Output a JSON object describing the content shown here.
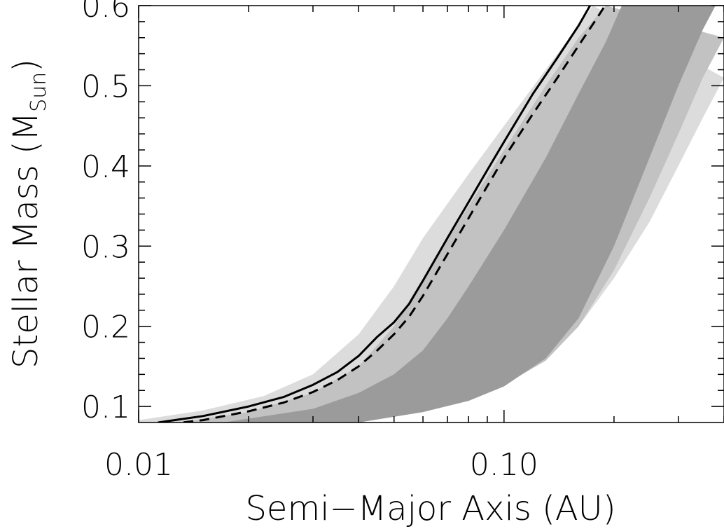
{
  "chart_data": {
    "type": "area",
    "title": "",
    "xlabel": "Semi−Major Axis (AU)",
    "ylabel_main": "Stellar Mass (M",
    "ylabel_sub": "Sun",
    "ylabel_close": ")",
    "x_scale": "log",
    "xlim": [
      0.01,
      0.4
    ],
    "ylim": [
      0.08,
      0.6
    ],
    "x_ticks": [
      {
        "value": 0.01,
        "label": "0.01"
      },
      {
        "value": 0.1,
        "label": "0.10"
      }
    ],
    "y_ticks": [
      {
        "value": 0.1,
        "label": "0.1"
      },
      {
        "value": 0.2,
        "label": "0.2"
      },
      {
        "value": 0.3,
        "label": "0.3"
      },
      {
        "value": 0.4,
        "label": "0.4"
      },
      {
        "value": 0.5,
        "label": "0.5"
      },
      {
        "value": 0.6,
        "label": "0.6"
      }
    ],
    "colors": {
      "outer_band": "#dcdcdc",
      "middle_band": "#c2c2c2",
      "inner_band": "#9b9b9b",
      "line": "#000000"
    },
    "bands": [
      {
        "level": "outer",
        "inner_edge": [
          [
            0.0095,
            0.08
          ],
          [
            0.01,
            0.083
          ],
          [
            0.015,
            0.095
          ],
          [
            0.022,
            0.113
          ],
          [
            0.03,
            0.14
          ],
          [
            0.04,
            0.19
          ],
          [
            0.05,
            0.25
          ],
          [
            0.06,
            0.31
          ],
          [
            0.08,
            0.39
          ],
          [
            0.1,
            0.45
          ],
          [
            0.13,
            0.52
          ],
          [
            0.16,
            0.575
          ],
          [
            0.175,
            0.6
          ]
        ],
        "outer_edge": [
          [
            0.021,
            0.08
          ],
          [
            0.04,
            0.088
          ],
          [
            0.06,
            0.1
          ],
          [
            0.08,
            0.113
          ],
          [
            0.1,
            0.13
          ],
          [
            0.13,
            0.16
          ],
          [
            0.16,
            0.2
          ],
          [
            0.2,
            0.26
          ],
          [
            0.25,
            0.33
          ],
          [
            0.3,
            0.4
          ],
          [
            0.35,
            0.46
          ],
          [
            0.4,
            0.51
          ]
        ]
      },
      {
        "level": "middle",
        "inner_edge": [
          [
            0.013,
            0.08
          ],
          [
            0.02,
            0.093
          ],
          [
            0.03,
            0.117
          ],
          [
            0.04,
            0.15
          ],
          [
            0.05,
            0.2
          ],
          [
            0.06,
            0.26
          ],
          [
            0.08,
            0.35
          ],
          [
            0.1,
            0.42
          ],
          [
            0.13,
            0.5
          ],
          [
            0.16,
            0.56
          ],
          [
            0.19,
            0.6
          ]
        ],
        "outer_edge": [
          [
            0.03,
            0.08
          ],
          [
            0.05,
            0.09
          ],
          [
            0.07,
            0.103
          ],
          [
            0.1,
            0.127
          ],
          [
            0.13,
            0.157
          ],
          [
            0.16,
            0.2
          ],
          [
            0.2,
            0.27
          ],
          [
            0.25,
            0.36
          ],
          [
            0.3,
            0.44
          ],
          [
            0.35,
            0.51
          ],
          [
            0.4,
            0.56
          ]
        ]
      },
      {
        "level": "inner",
        "inner_edge": [
          [
            0.017,
            0.08
          ],
          [
            0.03,
            0.097
          ],
          [
            0.04,
            0.117
          ],
          [
            0.05,
            0.14
          ],
          [
            0.06,
            0.17
          ],
          [
            0.07,
            0.21
          ],
          [
            0.08,
            0.25
          ],
          [
            0.1,
            0.32
          ],
          [
            0.13,
            0.41
          ],
          [
            0.16,
            0.49
          ],
          [
            0.19,
            0.555
          ],
          [
            0.21,
            0.6
          ]
        ],
        "outer_edge": [
          [
            0.04,
            0.08
          ],
          [
            0.06,
            0.093
          ],
          [
            0.08,
            0.107
          ],
          [
            0.1,
            0.125
          ],
          [
            0.13,
            0.16
          ],
          [
            0.16,
            0.21
          ],
          [
            0.2,
            0.3
          ],
          [
            0.25,
            0.41
          ],
          [
            0.3,
            0.5
          ],
          [
            0.35,
            0.57
          ],
          [
            0.4,
            0.62
          ]
        ]
      }
    ],
    "series": [
      {
        "style": "solid",
        "points": [
          [
            0.0113,
            0.08
          ],
          [
            0.015,
            0.088
          ],
          [
            0.02,
            0.1
          ],
          [
            0.025,
            0.112
          ],
          [
            0.03,
            0.127
          ],
          [
            0.035,
            0.143
          ],
          [
            0.04,
            0.163
          ],
          [
            0.045,
            0.187
          ],
          [
            0.05,
            0.205
          ],
          [
            0.055,
            0.228
          ],
          [
            0.06,
            0.257
          ],
          [
            0.07,
            0.31
          ],
          [
            0.08,
            0.355
          ],
          [
            0.09,
            0.395
          ],
          [
            0.1,
            0.43
          ],
          [
            0.12,
            0.49
          ],
          [
            0.14,
            0.535
          ],
          [
            0.16,
            0.575
          ],
          [
            0.172,
            0.6
          ]
        ]
      },
      {
        "style": "dashed",
        "points": [
          [
            0.012,
            0.078
          ],
          [
            0.015,
            0.083
          ],
          [
            0.02,
            0.094
          ],
          [
            0.025,
            0.105
          ],
          [
            0.03,
            0.118
          ],
          [
            0.035,
            0.133
          ],
          [
            0.04,
            0.15
          ],
          [
            0.045,
            0.17
          ],
          [
            0.05,
            0.19
          ],
          [
            0.055,
            0.212
          ],
          [
            0.06,
            0.238
          ],
          [
            0.07,
            0.29
          ],
          [
            0.08,
            0.335
          ],
          [
            0.09,
            0.375
          ],
          [
            0.1,
            0.41
          ],
          [
            0.12,
            0.465
          ],
          [
            0.14,
            0.51
          ],
          [
            0.16,
            0.55
          ],
          [
            0.18,
            0.585
          ],
          [
            0.192,
            0.605
          ]
        ]
      }
    ]
  }
}
